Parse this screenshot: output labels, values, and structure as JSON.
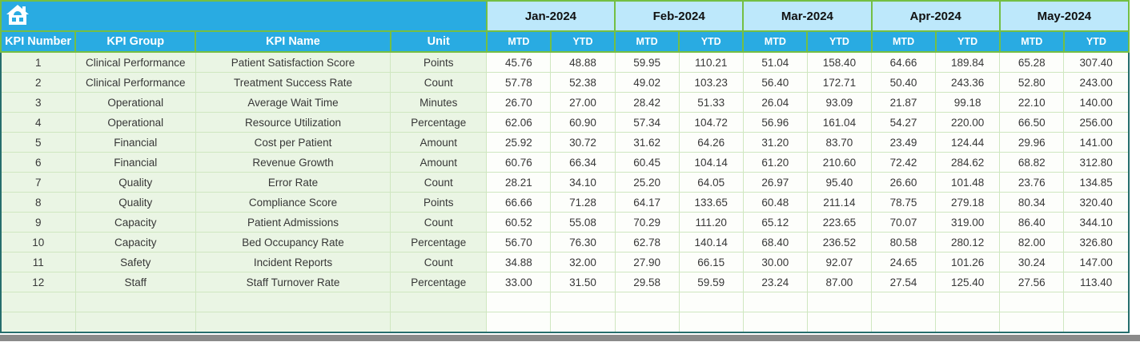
{
  "app": {
    "type": "spreadsheet-kpi-table",
    "home_icon": "home-icon"
  },
  "colors": {
    "accent_blue": "#29abe2",
    "month_light_blue": "#bde8fb",
    "header_border_green": "#74bf43",
    "grid_green": "#cfe7c0",
    "label_fill_green": "#eaf5e4",
    "value_fill": "#fdfefb",
    "outer_border_teal": "#266e6d",
    "scrollbar_gray": "#8a8a8a",
    "header_text": "#ffffff",
    "month_text": "#111111",
    "body_text": "#373737"
  },
  "columns": [
    "KPI Number",
    "KPI Group",
    "KPI Name",
    "Unit"
  ],
  "months": [
    {
      "label": "Jan-2024",
      "sub": [
        "MTD",
        "YTD"
      ]
    },
    {
      "label": "Feb-2024",
      "sub": [
        "MTD",
        "YTD"
      ]
    },
    {
      "label": "Mar-2024",
      "sub": [
        "MTD",
        "YTD"
      ]
    },
    {
      "label": "Apr-2024",
      "sub": [
        "MTD",
        "YTD"
      ]
    },
    {
      "label": "May-2024",
      "sub": [
        "MTD",
        "YTD"
      ]
    }
  ],
  "rows": [
    {
      "kpi_number": "1",
      "kpi_group": "Clinical Performance",
      "kpi_name": "Patient Satisfaction Score",
      "unit": "Points",
      "values": [
        "45.76",
        "48.88",
        "59.95",
        "110.21",
        "51.04",
        "158.40",
        "64.66",
        "189.84",
        "65.28",
        "307.40"
      ]
    },
    {
      "kpi_number": "2",
      "kpi_group": "Clinical Performance",
      "kpi_name": "Treatment Success Rate",
      "unit": "Count",
      "values": [
        "57.78",
        "52.38",
        "49.02",
        "103.23",
        "56.40",
        "172.71",
        "50.40",
        "243.36",
        "52.80",
        "243.00"
      ]
    },
    {
      "kpi_number": "3",
      "kpi_group": "Operational",
      "kpi_name": "Average Wait Time",
      "unit": "Minutes",
      "values": [
        "26.70",
        "27.00",
        "28.42",
        "51.33",
        "26.04",
        "93.09",
        "21.87",
        "99.18",
        "22.10",
        "140.00"
      ]
    },
    {
      "kpi_number": "4",
      "kpi_group": "Operational",
      "kpi_name": "Resource Utilization",
      "unit": "Percentage",
      "values": [
        "62.06",
        "60.90",
        "57.34",
        "104.72",
        "56.96",
        "161.04",
        "54.27",
        "220.00",
        "66.50",
        "256.00"
      ]
    },
    {
      "kpi_number": "5",
      "kpi_group": "Financial",
      "kpi_name": "Cost per Patient",
      "unit": "Amount",
      "values": [
        "25.92",
        "30.72",
        "31.62",
        "64.26",
        "31.20",
        "83.70",
        "23.49",
        "124.44",
        "29.96",
        "141.00"
      ]
    },
    {
      "kpi_number": "6",
      "kpi_group": "Financial",
      "kpi_name": "Revenue Growth",
      "unit": "Amount",
      "values": [
        "60.76",
        "66.34",
        "60.45",
        "104.14",
        "61.20",
        "210.60",
        "72.42",
        "284.62",
        "68.82",
        "312.80"
      ]
    },
    {
      "kpi_number": "7",
      "kpi_group": "Quality",
      "kpi_name": "Error Rate",
      "unit": "Count",
      "values": [
        "28.21",
        "34.10",
        "25.20",
        "64.05",
        "26.97",
        "95.40",
        "26.60",
        "101.48",
        "23.76",
        "134.85"
      ]
    },
    {
      "kpi_number": "8",
      "kpi_group": "Quality",
      "kpi_name": "Compliance Score",
      "unit": "Points",
      "values": [
        "66.66",
        "71.28",
        "64.17",
        "133.65",
        "60.48",
        "211.14",
        "78.75",
        "279.18",
        "80.34",
        "320.40"
      ]
    },
    {
      "kpi_number": "9",
      "kpi_group": "Capacity",
      "kpi_name": "Patient Admissions",
      "unit": "Count",
      "values": [
        "60.52",
        "55.08",
        "70.29",
        "111.20",
        "65.12",
        "223.65",
        "70.07",
        "319.00",
        "86.40",
        "344.10"
      ]
    },
    {
      "kpi_number": "10",
      "kpi_group": "Capacity",
      "kpi_name": "Bed Occupancy Rate",
      "unit": "Percentage",
      "values": [
        "56.70",
        "76.30",
        "62.78",
        "140.14",
        "68.40",
        "236.52",
        "80.58",
        "280.12",
        "82.00",
        "326.80"
      ]
    },
    {
      "kpi_number": "11",
      "kpi_group": "Safety",
      "kpi_name": "Incident Reports",
      "unit": "Count",
      "values": [
        "34.88",
        "32.00",
        "27.90",
        "66.15",
        "30.00",
        "92.07",
        "24.65",
        "101.26",
        "30.24",
        "147.00"
      ]
    },
    {
      "kpi_number": "12",
      "kpi_group": "Staff",
      "kpi_name": "Staff Turnover Rate",
      "unit": "Percentage",
      "values": [
        "33.00",
        "31.50",
        "29.58",
        "59.59",
        "23.24",
        "87.00",
        "27.54",
        "125.40",
        "27.56",
        "113.40"
      ]
    }
  ],
  "empty_row_count": 2
}
